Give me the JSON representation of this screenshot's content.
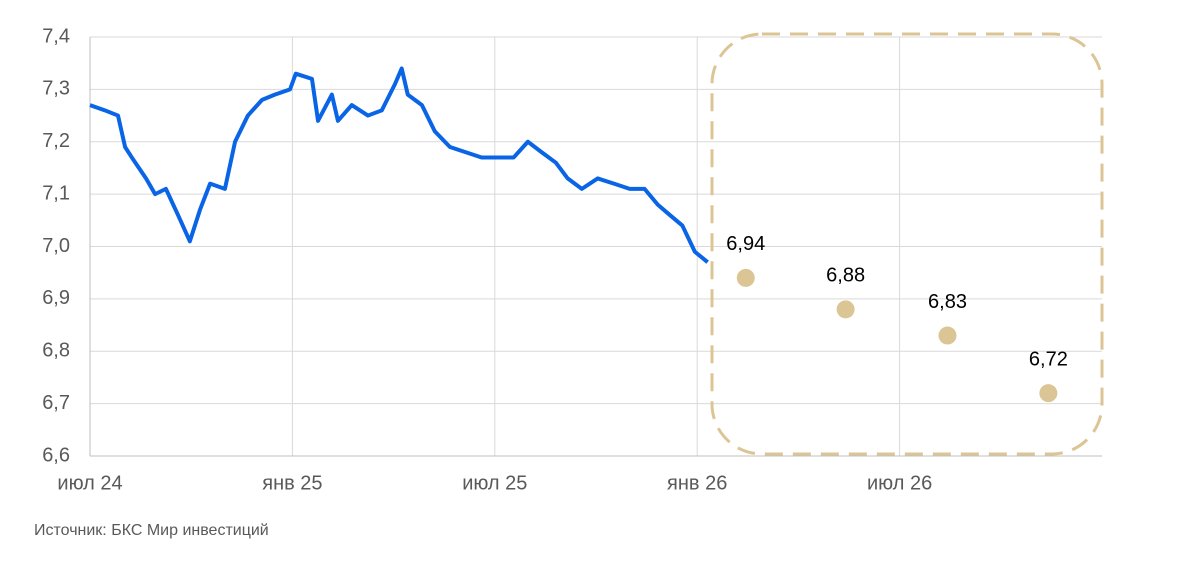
{
  "chart_data": {
    "type": "line",
    "source": "Источник: БКС Мир инвестиций",
    "xlim": [
      0,
      30
    ],
    "xticks": [
      {
        "value": 0,
        "label": "июл 24"
      },
      {
        "value": 6,
        "label": "янв 25"
      },
      {
        "value": 12,
        "label": "июл 25"
      },
      {
        "value": 18,
        "label": "янв 26"
      },
      {
        "value": 24,
        "label": "июл 26"
      }
    ],
    "ylim": [
      6.6,
      7.4
    ],
    "yticks": [
      {
        "value": 6.6,
        "label": "6,6"
      },
      {
        "value": 6.7,
        "label": "6,7"
      },
      {
        "value": 6.8,
        "label": "6,8"
      },
      {
        "value": 6.9,
        "label": "6,9"
      },
      {
        "value": 7.0,
        "label": "7,0"
      },
      {
        "value": 7.1,
        "label": "7,1"
      },
      {
        "value": 7.2,
        "label": "7,2"
      },
      {
        "value": 7.3,
        "label": "7,3"
      },
      {
        "value": 7.4,
        "label": "7,4"
      }
    ],
    "grid": true,
    "series": [
      {
        "type": "line",
        "color": "#0a64e6",
        "x": [
          0,
          0.44,
          0.83,
          1.04,
          1.24,
          1.66,
          1.93,
          2.25,
          2.61,
          2.96,
          3.26,
          3.56,
          4.0,
          4.3,
          4.68,
          5.1,
          5.48,
          5.93,
          6.1,
          6.58,
          6.76,
          7.17,
          7.35,
          7.76,
          8.24,
          8.65,
          9.04,
          9.24,
          9.42,
          9.84,
          10.22,
          10.67,
          11.14,
          11.61,
          12.09,
          12.56,
          12.98,
          13.39,
          13.81,
          14.16,
          14.58,
          15.05,
          15.53,
          16.0,
          16.44,
          16.83,
          17.19,
          17.56,
          17.93,
          18.31
        ],
        "values": [
          7.27,
          7.26,
          7.25,
          7.19,
          7.17,
          7.13,
          7.1,
          7.11,
          7.06,
          7.01,
          7.07,
          7.12,
          7.11,
          7.2,
          7.25,
          7.28,
          7.29,
          7.3,
          7.33,
          7.32,
          7.24,
          7.29,
          7.24,
          7.27,
          7.25,
          7.26,
          7.31,
          7.34,
          7.29,
          7.27,
          7.22,
          7.19,
          7.18,
          7.17,
          7.17,
          7.17,
          7.2,
          7.18,
          7.16,
          7.13,
          7.11,
          7.13,
          7.12,
          7.11,
          7.11,
          7.08,
          7.06,
          7.04,
          6.99,
          6.97
        ]
      },
      {
        "type": "scatter",
        "color": "#dcc594",
        "x": [
          19.44,
          22.4,
          25.42,
          28.41
        ],
        "values": [
          6.94,
          6.88,
          6.83,
          6.72
        ],
        "value_labels": [
          "6,94",
          "6,88",
          "6,83",
          "6,72"
        ]
      }
    ]
  }
}
